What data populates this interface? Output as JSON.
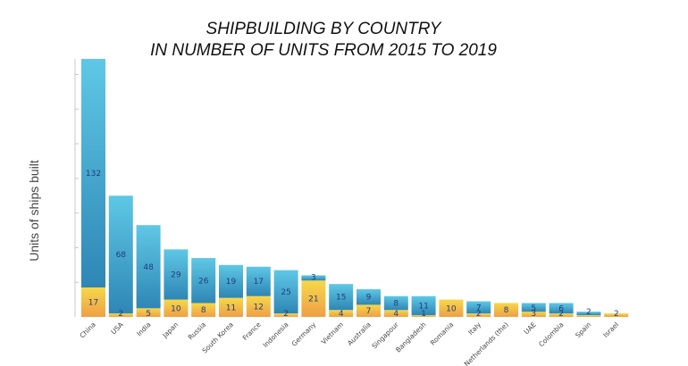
{
  "chart_data": {
    "type": "bar",
    "stacked": true,
    "title": [
      "SHIPBUILDING BY COUNTRY",
      "IN NUMBER OF UNITS FROM 2015 TO 2019"
    ],
    "ylabel": "Units of ships built",
    "xlabel": "",
    "ylim": [
      0,
      149
    ],
    "grid": false,
    "legend": "none",
    "categories": [
      "China",
      "USA",
      "India",
      "Japan",
      "Russia",
      "South Korea",
      "France",
      "Indonesia",
      "Germany",
      "Vietnam",
      "Australia",
      "Singapour",
      "Bangladesh",
      "Romania",
      "Italy",
      "Netherlands (the)",
      "UAE",
      "Colombia",
      "Spain",
      "Israel"
    ],
    "series": [
      {
        "values": [
          17,
          2,
          5,
          10,
          8,
          11,
          12,
          2,
          21,
          4,
          7,
          4,
          1,
          10,
          2,
          8,
          3,
          2,
          1,
          2
        ],
        "colors": {
          "top": "#f6d84a",
          "bottom": "#ef9f45"
        }
      },
      {
        "values": [
          132,
          68,
          48,
          29,
          26,
          19,
          17,
          25,
          3,
          15,
          9,
          8,
          11,
          0,
          7,
          0,
          5,
          6,
          2,
          0
        ],
        "colors": {
          "top": "#5fc8e6",
          "bottom": "#2e86b5"
        }
      }
    ],
    "labels": {
      "bottom": [
        "17",
        "2",
        "5",
        "10",
        "8",
        "11",
        "12",
        "2",
        "21",
        "4",
        "7",
        "4",
        "1",
        "10",
        "2",
        "8",
        "3",
        "2",
        "",
        "2"
      ],
      "top": [
        "132",
        "68",
        "48",
        "29",
        "26",
        "19",
        "17",
        "25",
        "3",
        "15",
        "9",
        "8",
        "11",
        "",
        "7",
        "",
        "5",
        "6",
        "2",
        ""
      ]
    }
  }
}
